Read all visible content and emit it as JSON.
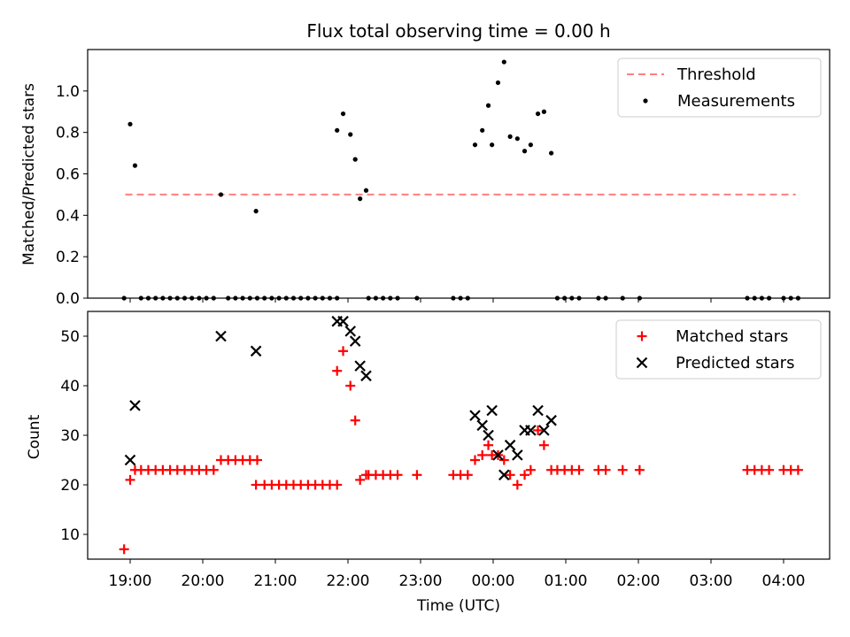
{
  "chart_data": [
    {
      "type": "scatter",
      "title": "Flux total observing time = 0.00 h",
      "ylabel": "Matched/Predicted stars",
      "ylim": [
        0,
        1.2
      ],
      "yticks": [
        "0.0",
        "0.2",
        "0.4",
        "0.6",
        "0.8",
        "1.0"
      ],
      "legend_position": "top-right",
      "threshold": {
        "name": "Threshold",
        "value": 0.5,
        "x_range": [
          "18:56",
          "04:10"
        ],
        "color": "#ff7f7f"
      },
      "series": [
        {
          "name": "Measurements",
          "color": "#000000",
          "points": [
            [
              "18:55",
              0.0
            ],
            [
              "19:00",
              0.84
            ],
            [
              "19:04",
              0.64
            ],
            [
              "19:09",
              0.0
            ],
            [
              "19:15",
              0.0
            ],
            [
              "19:21",
              0.0
            ],
            [
              "19:27",
              0.0
            ],
            [
              "19:33",
              0.0
            ],
            [
              "19:39",
              0.0
            ],
            [
              "19:45",
              0.0
            ],
            [
              "19:51",
              0.0
            ],
            [
              "19:57",
              0.0
            ],
            [
              "20:03",
              0.0
            ],
            [
              "20:09",
              0.0
            ],
            [
              "20:15",
              0.5
            ],
            [
              "20:21",
              0.0
            ],
            [
              "20:27",
              0.0
            ],
            [
              "20:33",
              0.0
            ],
            [
              "20:39",
              0.0
            ],
            [
              "20:45",
              0.0
            ],
            [
              "20:44",
              0.42
            ],
            [
              "20:51",
              0.0
            ],
            [
              "20:57",
              0.0
            ],
            [
              "21:03",
              0.0
            ],
            [
              "21:09",
              0.0
            ],
            [
              "21:15",
              0.0
            ],
            [
              "21:21",
              0.0
            ],
            [
              "21:27",
              0.0
            ],
            [
              "21:33",
              0.0
            ],
            [
              "21:39",
              0.0
            ],
            [
              "21:45",
              0.0
            ],
            [
              "21:51",
              0.0
            ],
            [
              "21:51",
              0.81
            ],
            [
              "21:56",
              0.89
            ],
            [
              "22:02",
              0.79
            ],
            [
              "22:06",
              0.67
            ],
            [
              "22:10",
              0.48
            ],
            [
              "22:15",
              0.52
            ],
            [
              "22:17",
              0.0
            ],
            [
              "22:23",
              0.0
            ],
            [
              "22:29",
              0.0
            ],
            [
              "22:35",
              0.0
            ],
            [
              "22:41",
              0.0
            ],
            [
              "22:57",
              0.0
            ],
            [
              "23:27",
              0.0
            ],
            [
              "23:33",
              0.0
            ],
            [
              "23:39",
              0.0
            ],
            [
              "23:45",
              0.74
            ],
            [
              "23:51",
              0.81
            ],
            [
              "23:56",
              0.93
            ],
            [
              "23:59",
              0.74
            ],
            [
              "00:04",
              1.04
            ],
            [
              "00:09",
              1.14
            ],
            [
              "00:14",
              0.78
            ],
            [
              "00:20",
              0.77
            ],
            [
              "00:26",
              0.71
            ],
            [
              "00:31",
              0.74
            ],
            [
              "00:37",
              0.89
            ],
            [
              "00:42",
              0.9
            ],
            [
              "00:48",
              0.7
            ],
            [
              "00:53",
              0.0
            ],
            [
              "00:59",
              0.0
            ],
            [
              "01:05",
              0.0
            ],
            [
              "01:11",
              0.0
            ],
            [
              "01:27",
              0.0
            ],
            [
              "01:33",
              0.0
            ],
            [
              "01:47",
              0.0
            ],
            [
              "02:01",
              0.0
            ],
            [
              "03:30",
              0.0
            ],
            [
              "03:36",
              0.0
            ],
            [
              "03:42",
              0.0
            ],
            [
              "03:48",
              0.0
            ],
            [
              "04:00",
              0.0
            ],
            [
              "04:06",
              0.0
            ],
            [
              "04:12",
              0.0
            ]
          ]
        }
      ]
    },
    {
      "type": "scatter",
      "xlabel": "Time (UTC)",
      "ylabel": "Count",
      "ylim": [
        5,
        55
      ],
      "yticks": [
        "10",
        "20",
        "30",
        "40",
        "50"
      ],
      "xticks": [
        "19:00",
        "20:00",
        "21:00",
        "22:00",
        "23:00",
        "00:00",
        "01:00",
        "02:00",
        "03:00",
        "04:00"
      ],
      "legend_position": "top-right",
      "series": [
        {
          "name": "Matched stars",
          "marker": "plus",
          "color": "#ff0000",
          "points": [
            [
              "18:55",
              7
            ],
            [
              "19:00",
              21
            ],
            [
              "19:04",
              23
            ],
            [
              "19:09",
              23
            ],
            [
              "19:15",
              23
            ],
            [
              "19:21",
              23
            ],
            [
              "19:27",
              23
            ],
            [
              "19:33",
              23
            ],
            [
              "19:39",
              23
            ],
            [
              "19:45",
              23
            ],
            [
              "19:51",
              23
            ],
            [
              "19:57",
              23
            ],
            [
              "20:03",
              23
            ],
            [
              "20:09",
              23
            ],
            [
              "20:15",
              25
            ],
            [
              "20:21",
              25
            ],
            [
              "20:27",
              25
            ],
            [
              "20:33",
              25
            ],
            [
              "20:39",
              25
            ],
            [
              "20:45",
              25
            ],
            [
              "20:44",
              20
            ],
            [
              "20:51",
              20
            ],
            [
              "20:57",
              20
            ],
            [
              "21:03",
              20
            ],
            [
              "21:09",
              20
            ],
            [
              "21:15",
              20
            ],
            [
              "21:21",
              20
            ],
            [
              "21:27",
              20
            ],
            [
              "21:33",
              20
            ],
            [
              "21:39",
              20
            ],
            [
              "21:45",
              20
            ],
            [
              "21:51",
              20
            ],
            [
              "21:51",
              43
            ],
            [
              "21:56",
              47
            ],
            [
              "22:02",
              40
            ],
            [
              "22:06",
              33
            ],
            [
              "22:10",
              21
            ],
            [
              "22:15",
              22
            ],
            [
              "22:17",
              22
            ],
            [
              "22:23",
              22
            ],
            [
              "22:29",
              22
            ],
            [
              "22:35",
              22
            ],
            [
              "22:41",
              22
            ],
            [
              "22:57",
              22
            ],
            [
              "23:27",
              22
            ],
            [
              "23:33",
              22
            ],
            [
              "23:39",
              22
            ],
            [
              "23:45",
              25
            ],
            [
              "23:51",
              26
            ],
            [
              "23:56",
              28
            ],
            [
              "23:59",
              26
            ],
            [
              "00:04",
              26
            ],
            [
              "00:09",
              25
            ],
            [
              "00:14",
              22
            ],
            [
              "00:20",
              20
            ],
            [
              "00:26",
              22
            ],
            [
              "00:31",
              23
            ],
            [
              "00:37",
              31
            ],
            [
              "00:42",
              28
            ],
            [
              "00:48",
              23
            ],
            [
              "00:53",
              23
            ],
            [
              "00:59",
              23
            ],
            [
              "01:05",
              23
            ],
            [
              "01:11",
              23
            ],
            [
              "01:27",
              23
            ],
            [
              "01:33",
              23
            ],
            [
              "01:47",
              23
            ],
            [
              "02:01",
              23
            ],
            [
              "03:30",
              23
            ],
            [
              "03:36",
              23
            ],
            [
              "03:42",
              23
            ],
            [
              "03:48",
              23
            ],
            [
              "04:00",
              23
            ],
            [
              "04:06",
              23
            ],
            [
              "04:12",
              23
            ]
          ]
        },
        {
          "name": "Predicted stars",
          "marker": "x",
          "color": "#000000",
          "points": [
            [
              "19:00",
              25
            ],
            [
              "19:04",
              36
            ],
            [
              "20:15",
              50
            ],
            [
              "20:44",
              47
            ],
            [
              "21:51",
              53
            ],
            [
              "21:56",
              53
            ],
            [
              "22:02",
              51
            ],
            [
              "22:06",
              49
            ],
            [
              "22:10",
              44
            ],
            [
              "22:15",
              42
            ],
            [
              "23:45",
              34
            ],
            [
              "23:51",
              32
            ],
            [
              "23:56",
              30
            ],
            [
              "23:59",
              35
            ],
            [
              "00:04",
              26
            ],
            [
              "00:09",
              22
            ],
            [
              "00:14",
              28
            ],
            [
              "00:20",
              26
            ],
            [
              "00:26",
              31
            ],
            [
              "00:31",
              31
            ],
            [
              "00:37",
              35
            ],
            [
              "00:42",
              31
            ],
            [
              "00:48",
              33
            ]
          ]
        }
      ]
    }
  ]
}
